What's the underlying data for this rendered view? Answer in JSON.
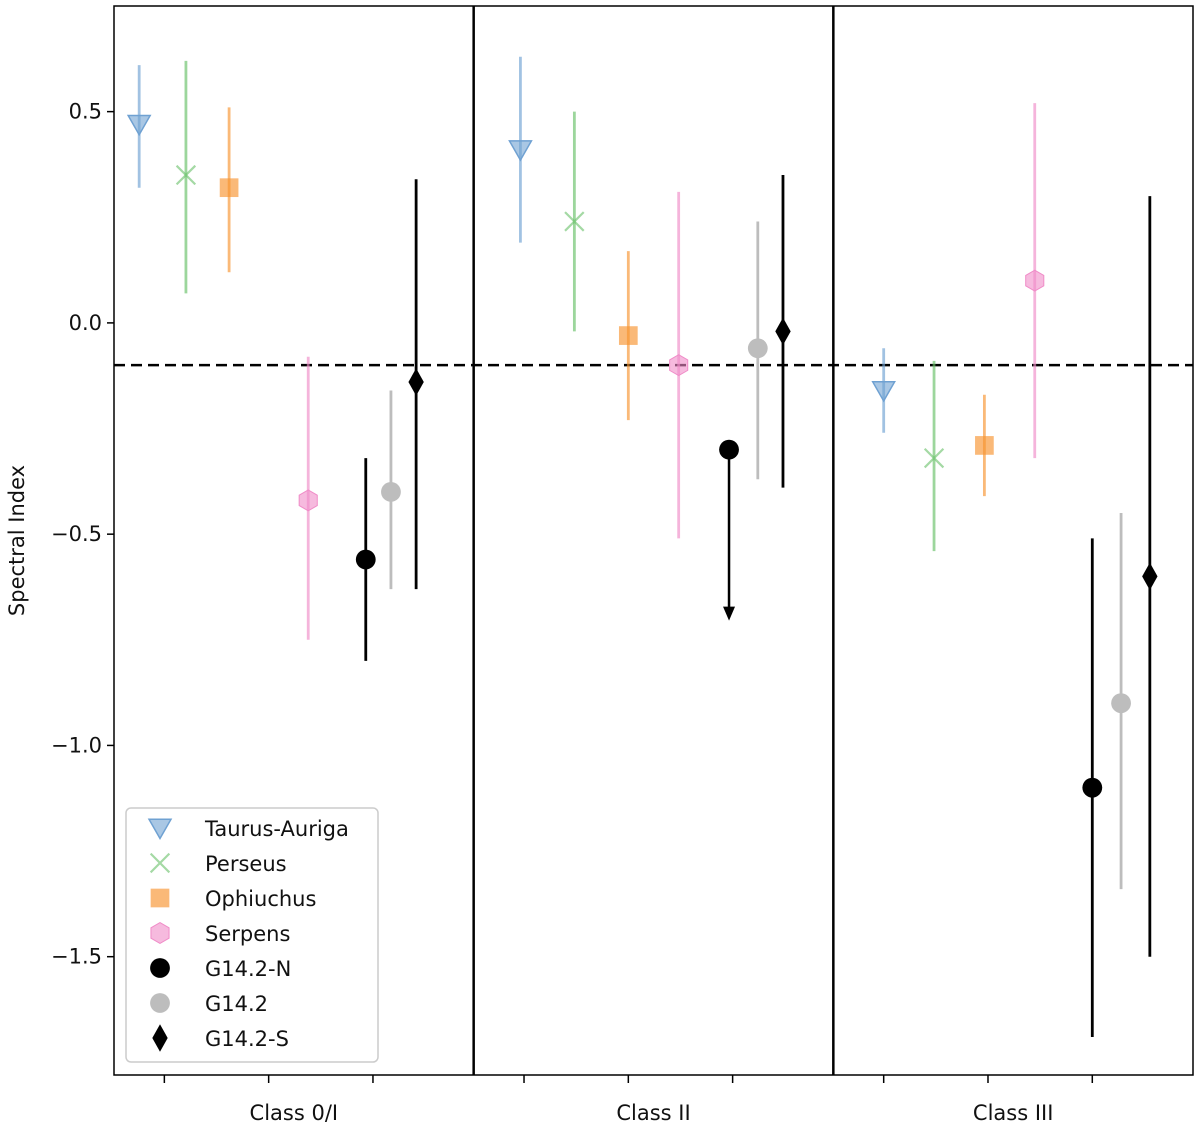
{
  "chart_data": {
    "type": "scatter",
    "title": "",
    "xlabel": "",
    "ylabel": "Spectral Index",
    "categories": [
      "Class 0/I",
      "Class II",
      "Class III"
    ],
    "ylim": [
      -1.78,
      0.75
    ],
    "yticks": [
      0.5,
      0.0,
      -0.5,
      -1.0,
      -1.5
    ],
    "ytick_labels": [
      "0.5",
      "0.0",
      "−0.5",
      "−1.0",
      "−1.5"
    ],
    "reference_line": -0.1,
    "legend_position": "bottom-left",
    "series": [
      {
        "name": "Taurus-Auriga",
        "marker": "triangle-down",
        "color": "#6fa1d2",
        "alpha": 0.6,
        "points": [
          {
            "category": "Class 0/I",
            "offset": -0.43,
            "y": 0.47,
            "low": 0.32,
            "high": 0.61
          },
          {
            "category": "Class II",
            "offset": -0.37,
            "y": 0.41,
            "low": 0.19,
            "high": 0.63
          },
          {
            "category": "Class III",
            "offset": -0.36,
            "y": -0.16,
            "low": -0.26,
            "high": -0.06
          }
        ]
      },
      {
        "name": "Perseus",
        "marker": "x",
        "color": "#67c067",
        "alpha": 0.6,
        "points": [
          {
            "category": "Class 0/I",
            "offset": -0.3,
            "y": 0.35,
            "low": 0.07,
            "high": 0.62
          },
          {
            "category": "Class II",
            "offset": -0.22,
            "y": 0.24,
            "low": -0.02,
            "high": 0.5
          },
          {
            "category": "Class III",
            "offset": -0.22,
            "y": -0.32,
            "low": -0.54,
            "high": -0.09
          }
        ]
      },
      {
        "name": "Ophiuchus",
        "marker": "square",
        "color": "#f7942f",
        "alpha": 0.65,
        "points": [
          {
            "category": "Class 0/I",
            "offset": -0.18,
            "y": 0.32,
            "low": 0.12,
            "high": 0.51
          },
          {
            "category": "Class II",
            "offset": -0.07,
            "y": -0.03,
            "low": -0.23,
            "high": 0.17
          },
          {
            "category": "Class III",
            "offset": -0.08,
            "y": -0.29,
            "low": -0.41,
            "high": -0.17
          }
        ]
      },
      {
        "name": "Serpens",
        "marker": "hexagon",
        "color": "#f08cc8",
        "alpha": 0.6,
        "points": [
          {
            "category": "Class 0/I",
            "offset": 0.04,
            "y": -0.42,
            "low": -0.75,
            "high": -0.08
          },
          {
            "category": "Class II",
            "offset": 0.07,
            "y": -0.1,
            "low": -0.51,
            "high": 0.31
          },
          {
            "category": "Class III",
            "offset": 0.06,
            "y": 0.1,
            "low": -0.32,
            "high": 0.52
          }
        ]
      },
      {
        "name": "G14.2-N",
        "marker": "circle",
        "color": "#000000",
        "alpha": 1.0,
        "points": [
          {
            "category": "Class 0/I",
            "offset": 0.2,
            "y": -0.56,
            "low": -0.8,
            "high": -0.32
          },
          {
            "category": "Class II",
            "offset": 0.21,
            "y": -0.3,
            "upper_limit": true,
            "arrow_to": -0.7
          },
          {
            "category": "Class III",
            "offset": 0.22,
            "y": -1.1,
            "low": -1.69,
            "high": -0.51
          }
        ]
      },
      {
        "name": "G14.2",
        "marker": "circle",
        "color": "#bdbdbd",
        "alpha": 1.0,
        "points": [
          {
            "category": "Class 0/I",
            "offset": 0.27,
            "y": -0.4,
            "low": -0.63,
            "high": -0.16
          },
          {
            "category": "Class II",
            "offset": 0.29,
            "y": -0.06,
            "low": -0.37,
            "high": 0.24
          },
          {
            "category": "Class III",
            "offset": 0.3,
            "y": -0.9,
            "low": -1.34,
            "high": -0.45
          }
        ]
      },
      {
        "name": "G14.2-S",
        "marker": "diamond",
        "color": "#000000",
        "alpha": 1.0,
        "points": [
          {
            "category": "Class 0/I",
            "offset": 0.34,
            "y": -0.14,
            "low": -0.63,
            "high": 0.34
          },
          {
            "category": "Class II",
            "offset": 0.36,
            "y": -0.02,
            "low": -0.39,
            "high": 0.35
          },
          {
            "category": "Class III",
            "offset": 0.38,
            "y": -0.6,
            "low": -1.5,
            "high": 0.3
          }
        ]
      }
    ]
  }
}
